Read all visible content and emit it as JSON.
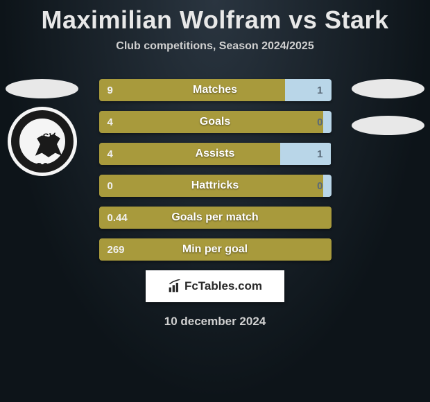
{
  "title": "Maximilian Wolfram vs Stark",
  "subtitle": "Club competitions, Season 2024/2025",
  "crest": {
    "year": "1860",
    "letters": "SV"
  },
  "colors": {
    "left_bar": "#a89a3c",
    "right_bar": "#b9d6e8",
    "left_text": "#f0f0f0",
    "right_text": "#5a6a78",
    "label_text": "#ffffff",
    "title_text": "#e8e8e8",
    "subtitle_text": "#d0d0d0"
  },
  "bars": [
    {
      "label": "Matches",
      "left": "9",
      "right": "1",
      "left_pct": 80,
      "right_pct": 20
    },
    {
      "label": "Goals",
      "left": "4",
      "right": "0",
      "left_pct": 98,
      "right_pct": 2
    },
    {
      "label": "Assists",
      "left": "4",
      "right": "1",
      "left_pct": 78,
      "right_pct": 22
    },
    {
      "label": "Hattricks",
      "left": "0",
      "right": "0",
      "left_pct": 98,
      "right_pct": 2
    },
    {
      "label": "Goals per match",
      "left": "0.44",
      "right": "",
      "left_pct": 100,
      "right_pct": 0
    },
    {
      "label": "Min per goal",
      "left": "269",
      "right": "",
      "left_pct": 100,
      "right_pct": 0
    }
  ],
  "branding": {
    "site": "FcTables.com"
  },
  "date": "10 december 2024"
}
